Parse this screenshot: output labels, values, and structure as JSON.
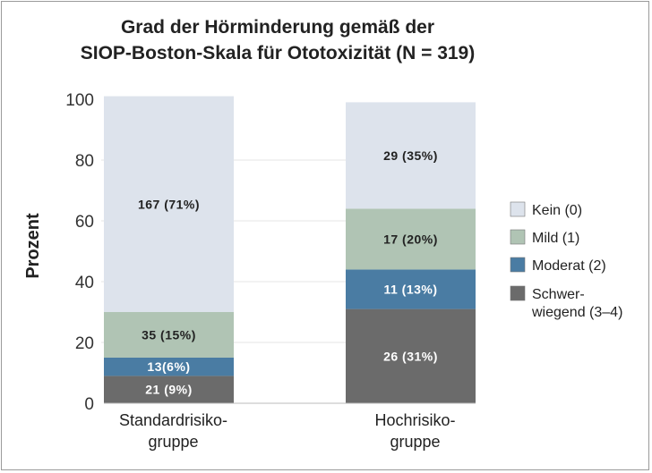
{
  "chart_data": {
    "type": "bar",
    "stacked": true,
    "title": [
      "Grad der Hörminderung gemäß der",
      "SIOP-Boston-Skala für Ototoxizität (N = 319)"
    ],
    "ylabel": "Prozent",
    "ylim": [
      0,
      100
    ],
    "yticks": [
      0,
      20,
      40,
      60,
      80,
      100
    ],
    "categories": [
      [
        "Standardrisiko-",
        "gruppe"
      ],
      [
        "Hochrisiko-",
        "gruppe"
      ]
    ],
    "series": [
      {
        "name": "Schwer-wiegend (3–4)",
        "legend_lines": [
          "Schwer-",
          "wiegend (3–4)"
        ],
        "color": "#6b6b6b",
        "text_color": "#ffffff",
        "values": [
          9,
          31
        ],
        "labels": [
          "21 (9%)",
          "26 (31%)"
        ]
      },
      {
        "name": "Moderat (2)",
        "legend_lines": [
          "Moderat (2)"
        ],
        "color": "#4a7ca3",
        "text_color": "#ffffff",
        "values": [
          6,
          13
        ],
        "labels": [
          "13(6%)",
          "11 (13%)"
        ]
      },
      {
        "name": "Mild (1)",
        "legend_lines": [
          "Mild (1)"
        ],
        "color": "#b0c4b4",
        "text_color": "#222222",
        "values": [
          15,
          20
        ],
        "labels": [
          "35 (15%)",
          "17 (20%)"
        ]
      },
      {
        "name": "Kein (0)",
        "legend_lines": [
          "Kein (0)"
        ],
        "color": "#dde3ec",
        "text_color": "#222222",
        "values": [
          71,
          35
        ],
        "labels": [
          "167 (71%)",
          "29 (35%)"
        ]
      }
    ],
    "legend_position": "right",
    "grid": false
  }
}
